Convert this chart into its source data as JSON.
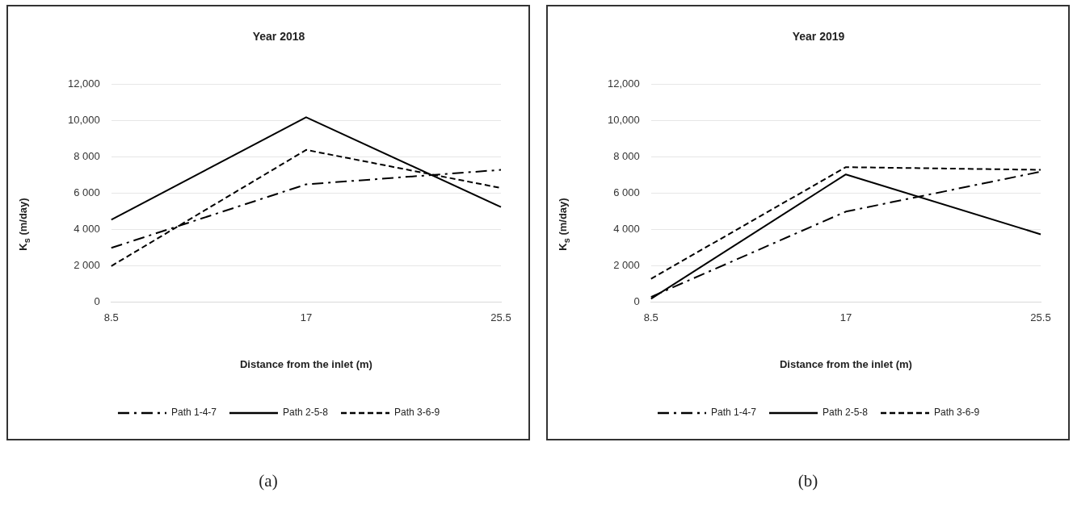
{
  "chart_data": [
    {
      "type": "line",
      "title": "Year 2018",
      "xlabel": "Distance from the inlet (m)",
      "ylabel": "K$_{s}$ (m/day)",
      "categories": [
        "8.5",
        "17",
        "25.5"
      ],
      "series": [
        {
          "name": "Path 1-4-7",
          "color": "#000000",
          "line_style": "dashdot",
          "values": [
            3000,
            6500,
            7300
          ]
        },
        {
          "name": "Path 2-5-8",
          "color": "#000000",
          "line_style": "solid",
          "values": [
            4550,
            10200,
            5250
          ]
        },
        {
          "name": "Path 3-6-9",
          "color": "#000000",
          "line_style": "dashed",
          "values": [
            2000,
            8400,
            6300
          ]
        }
      ],
      "ylim": [
        0,
        12000
      ],
      "yticks": [
        0,
        {
          "value": 2000,
          "label": "2 000"
        },
        {
          "value": 4000,
          "label": "4 000"
        },
        {
          "value": 6000,
          "label": "6 000"
        },
        {
          "value": 8000,
          "label": "8 000"
        },
        {
          "value": 10000,
          "label": "10,000"
        },
        {
          "value": 12000,
          "label": "12,000"
        }
      ],
      "grid": "y",
      "legend": "bottom",
      "marker": "none",
      "annotations": [
        "(a)"
      ]
    },
    {
      "type": "line",
      "title": "Year 2019",
      "xlabel": "Distance from the inlet (m)",
      "ylabel": "K$_{s}$ (m/day)",
      "categories": [
        "8.5",
        "17",
        "25.5"
      ],
      "series": [
        {
          "name": "Path 1-4-7",
          "color": "#000000",
          "line_style": "dashdot",
          "values": [
            300,
            5000,
            7200
          ]
        },
        {
          "name": "Path 2-5-8",
          "color": "#000000",
          "line_style": "solid",
          "values": [
            200,
            7050,
            3750
          ]
        },
        {
          "name": "Path 3-6-9",
          "color": "#000000",
          "line_style": "dashed",
          "values": [
            1300,
            7450,
            7300
          ]
        }
      ],
      "ylim": [
        0,
        12000
      ],
      "yticks": [
        0,
        {
          "value": 2000,
          "label": "2 000"
        },
        {
          "value": 4000,
          "label": "4 000"
        },
        {
          "value": 6000,
          "label": "6 000"
        },
        {
          "value": 8000,
          "label": "8 000"
        },
        {
          "value": 10000,
          "label": "10,000"
        },
        {
          "value": 12000,
          "label": "12,000"
        }
      ],
      "grid": "y",
      "legend": "bottom",
      "marker": "none",
      "annotations": [
        "(b)"
      ]
    }
  ]
}
